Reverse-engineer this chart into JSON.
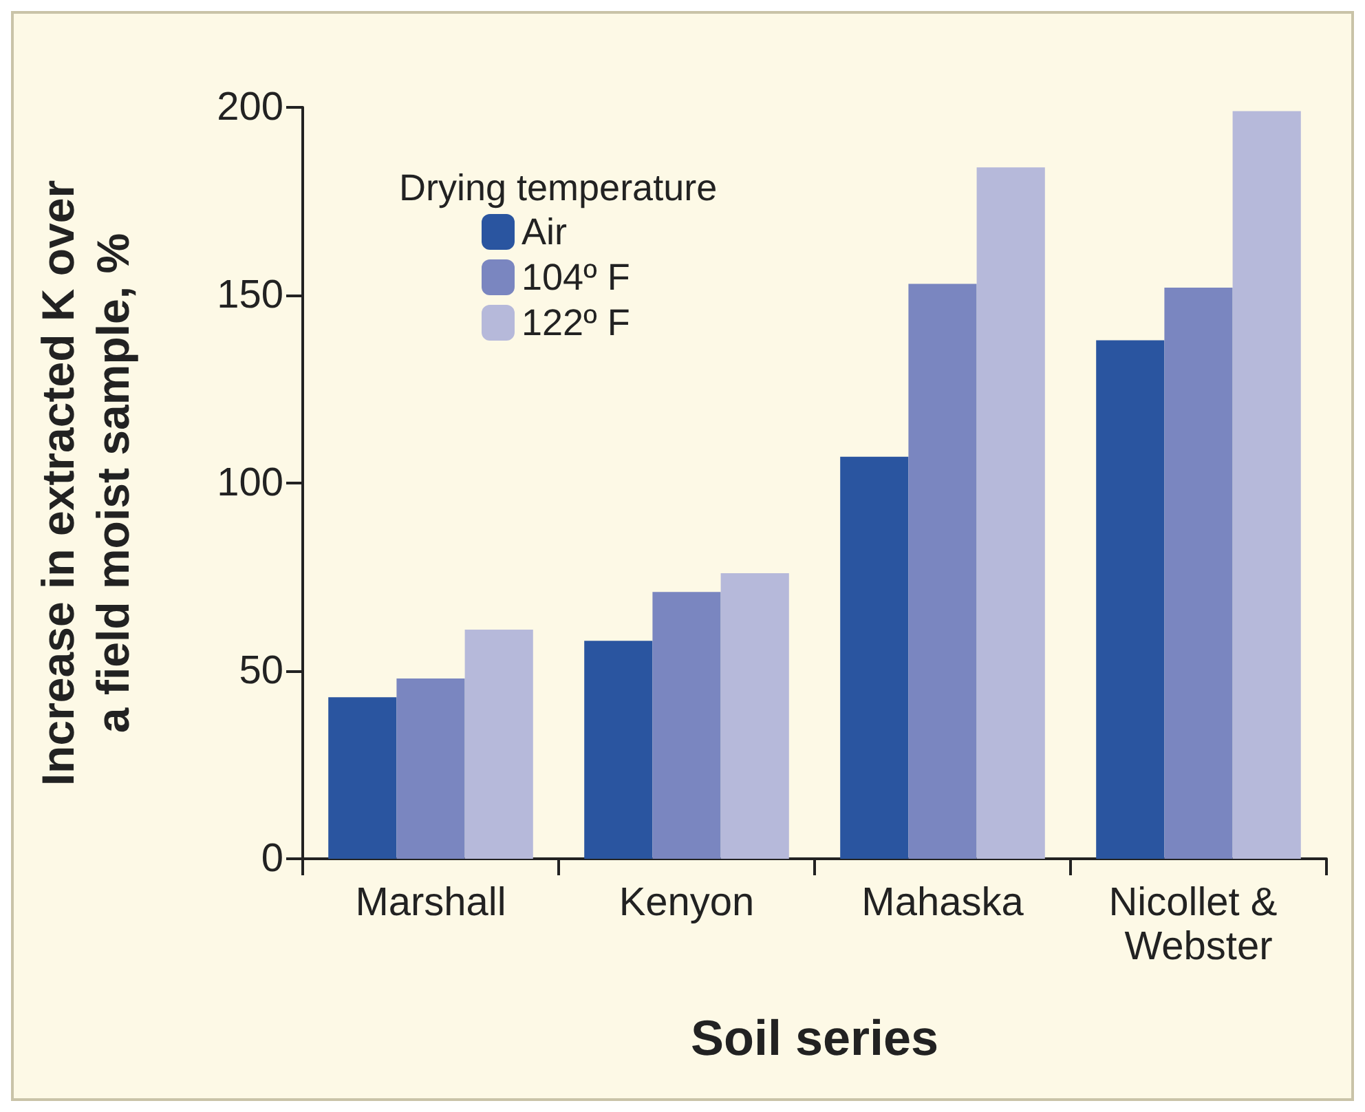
{
  "chart_data": {
    "type": "bar",
    "categories": [
      "Marshall",
      "Kenyon",
      "Mahaska",
      "Nicollet & Webster"
    ],
    "series": [
      {
        "name": "Air",
        "color": "#2a55a0",
        "values": [
          43,
          58,
          107,
          138
        ]
      },
      {
        "name": "104º F",
        "color": "#7a86c0",
        "values": [
          48,
          71,
          153,
          152
        ]
      },
      {
        "name": "122º F",
        "color": "#b6b9da",
        "values": [
          61,
          76,
          184,
          199
        ]
      }
    ],
    "xlabel": "Soil series",
    "ylabel": "Increase in extracted K over\na field moist sample, %",
    "legend_title": "Drying temperature",
    "legend": "top left",
    "ylim": [
      0,
      200
    ],
    "yticks": [
      0,
      50,
      100,
      150,
      200
    ],
    "grid": false
  }
}
